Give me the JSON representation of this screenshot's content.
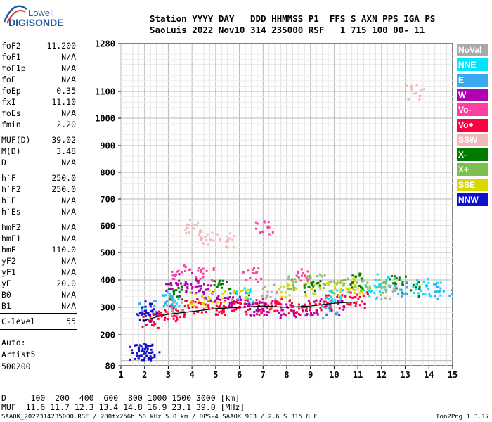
{
  "logo": {
    "top": "Lowell",
    "bottom": "DIGISONDE"
  },
  "header": {
    "line1": "Station YYYY DAY   DDD HHMMSS P1  FFS S AXN PPS IGA PS",
    "line2": "SaoLuis 2022 Nov10 314 235000 RSF   1 715 100 00- 11"
  },
  "params": [
    {
      "name": "foF2",
      "value": "11.200"
    },
    {
      "name": "foF1",
      "value": "N/A"
    },
    {
      "name": "foF1p",
      "value": "N/A"
    },
    {
      "name": "foE",
      "value": "N/A"
    },
    {
      "name": "foEp",
      "value": "0.35"
    },
    {
      "name": "fxI",
      "value": "11.10"
    },
    {
      "name": "foEs",
      "value": "N/A"
    },
    {
      "name": "fmin",
      "value": "2.20"
    },
    {
      "name": "MUF(D)",
      "value": "39.02"
    },
    {
      "name": "M(D)",
      "value": "3.48"
    },
    {
      "name": "D",
      "value": "N/A"
    },
    {
      "name": "h`F",
      "value": "250.0"
    },
    {
      "name": "h`F2",
      "value": "250.0"
    },
    {
      "name": "h`E",
      "value": "N/A"
    },
    {
      "name": "h`Es",
      "value": "N/A"
    },
    {
      "name": "hmF2",
      "value": "N/A"
    },
    {
      "name": "hmF1",
      "value": "N/A"
    },
    {
      "name": "hmE",
      "value": "110.0"
    },
    {
      "name": "yF2",
      "value": "N/A"
    },
    {
      "name": "yF1",
      "value": "N/A"
    },
    {
      "name": "yE",
      "value": "20.0"
    },
    {
      "name": "B0",
      "value": "N/A"
    },
    {
      "name": "B1",
      "value": "N/A"
    },
    {
      "name": "C-level",
      "value": "55"
    }
  ],
  "auto": {
    "line1": "Auto:",
    "line2": "Artist5",
    "line3": "500200"
  },
  "legend": [
    {
      "label": "NoVal",
      "color": "#a9a9a9"
    },
    {
      "label": "NNE",
      "color": "#00e5ff"
    },
    {
      "label": "E",
      "color": "#3aa8f0"
    },
    {
      "label": "W",
      "color": "#b000b0"
    },
    {
      "label": "Vo-",
      "color": "#ff3fa0"
    },
    {
      "label": "Vo+",
      "color": "#ff0040"
    },
    {
      "label": "SSW",
      "color": "#f2b8b8"
    },
    {
      "label": "X-",
      "color": "#007a00"
    },
    {
      "label": "X+",
      "color": "#7cbf50"
    },
    {
      "label": "SSE",
      "color": "#d8d800"
    },
    {
      "label": "NNW",
      "color": "#1010d0"
    }
  ],
  "bottom": {
    "d_line": "D     100  200  400  600  800 1000 1500 3000 [km]",
    "muf_line": "MUF  11.6 11.7 12.3 13.4 14.8 16.9 23.1 39.0 [MHz]"
  },
  "footer": {
    "left": "SAA0K_2022314235000.RSF / 280fx256h 50 kHz 5.0 km / DPS-4 SAA0K 903 / 2.6 S 315.8 E",
    "right": "Ion2Png 1.3.17"
  },
  "chart_data": {
    "type": "scatter",
    "title": "",
    "xlabel": "",
    "ylabel": "",
    "x_unit": "MHz",
    "y_unit": "km",
    "xlim": [
      1,
      15
    ],
    "ylim": [
      80,
      1280
    ],
    "y_scale": "nonlinear",
    "x_ticks": [
      1,
      2,
      3,
      4,
      5,
      6,
      7,
      8,
      9,
      10,
      11,
      12,
      13,
      14,
      15
    ],
    "y_ticks": [
      80,
      200,
      300,
      400,
      500,
      600,
      700,
      800,
      900,
      1000,
      1100,
      1280
    ],
    "grid": true,
    "legend_position": "right",
    "series": [
      {
        "name": "Vo+",
        "color": "#ff0040",
        "points": [
          [
            2.2,
            255
          ],
          [
            2.6,
            265
          ],
          [
            3.0,
            280
          ],
          [
            3.5,
            290
          ],
          [
            4.0,
            300
          ],
          [
            4.5,
            310
          ],
          [
            5.0,
            305
          ],
          [
            5.5,
            300
          ],
          [
            6.0,
            305
          ],
          [
            6.5,
            300
          ],
          [
            7.0,
            310
          ],
          [
            7.5,
            300
          ],
          [
            8.0,
            305
          ],
          [
            8.5,
            300
          ],
          [
            9.0,
            305
          ],
          [
            9.5,
            310
          ],
          [
            10.0,
            320
          ],
          [
            10.5,
            330
          ],
          [
            11.0,
            330
          ]
        ]
      },
      {
        "name": "W",
        "color": "#b000b0",
        "points": [
          [
            3.2,
            370
          ],
          [
            3.6,
            400
          ],
          [
            4.0,
            380
          ],
          [
            4.4,
            360
          ],
          [
            4.8,
            350
          ],
          [
            5.4,
            320
          ],
          [
            6.0,
            330
          ],
          [
            6.6,
            300
          ],
          [
            7.0,
            300
          ],
          [
            8.0,
            290
          ],
          [
            9.0,
            300
          ],
          [
            10.0,
            300
          ]
        ]
      },
      {
        "name": "SSE",
        "color": "#d8d800",
        "points": [
          [
            4.2,
            330
          ],
          [
            5.0,
            340
          ],
          [
            6.0,
            350
          ],
          [
            8.0,
            360
          ],
          [
            9.0,
            370
          ],
          [
            10.0,
            370
          ],
          [
            10.6,
            380
          ],
          [
            11.0,
            380
          ]
        ]
      },
      {
        "name": "X+",
        "color": "#7cbf50",
        "points": [
          [
            8.4,
            390
          ],
          [
            9.2,
            400
          ],
          [
            10.2,
            380
          ],
          [
            11.2,
            390
          ],
          [
            12.2,
            380
          ]
        ]
      },
      {
        "name": "X-",
        "color": "#007a00",
        "points": [
          [
            3.3,
            360
          ],
          [
            5.2,
            380
          ],
          [
            9.0,
            380
          ],
          [
            11.0,
            400
          ],
          [
            12.6,
            390
          ],
          [
            13.2,
            370
          ]
        ]
      },
      {
        "name": "NNE",
        "color": "#00e5ff",
        "points": [
          [
            3.1,
            330
          ],
          [
            6.2,
            350
          ],
          [
            10.0,
            340
          ],
          [
            11.6,
            360
          ],
          [
            12.0,
            400
          ],
          [
            13.6,
            380
          ],
          [
            14.2,
            370
          ]
        ]
      },
      {
        "name": "E",
        "color": "#3aa8f0",
        "points": [
          [
            2.1,
            300
          ],
          [
            3.0,
            320
          ],
          [
            9.8,
            290
          ],
          [
            12.8,
            370
          ],
          [
            14.6,
            360
          ]
        ]
      },
      {
        "name": "Vo-",
        "color": "#ff3fa0",
        "points": [
          [
            3.5,
            430
          ],
          [
            4.5,
            420
          ],
          [
            6.5,
            420
          ],
          [
            7.0,
            600
          ],
          [
            8.5,
            420
          ]
        ]
      },
      {
        "name": "NNW",
        "color": "#1010d0",
        "points": [
          [
            1.7,
            135
          ],
          [
            1.9,
            135
          ],
          [
            2.0,
            140
          ],
          [
            2.2,
            138
          ],
          [
            2.0,
            300
          ],
          [
            2.1,
            280
          ]
        ]
      },
      {
        "name": "SSW",
        "color": "#f2b8b8",
        "points": [
          [
            4.0,
            600
          ],
          [
            4.6,
            560
          ],
          [
            5.4,
            550
          ],
          [
            13.4,
            1100
          ]
        ]
      },
      {
        "name": "NoVal",
        "color": "#a9a9a9",
        "points": [
          [
            3.2,
            300
          ],
          [
            7.2,
            360
          ],
          [
            12.2,
            360
          ]
        ]
      }
    ],
    "trace": [
      [
        1.9,
        250
      ],
      [
        2.5,
        265
      ],
      [
        3.0,
        275
      ],
      [
        4.0,
        285
      ],
      [
        5.0,
        295
      ],
      [
        6.0,
        300
      ],
      [
        7.0,
        305
      ],
      [
        8.0,
        300
      ],
      [
        9.0,
        305
      ],
      [
        10.0,
        315
      ],
      [
        11.0,
        320
      ]
    ]
  }
}
